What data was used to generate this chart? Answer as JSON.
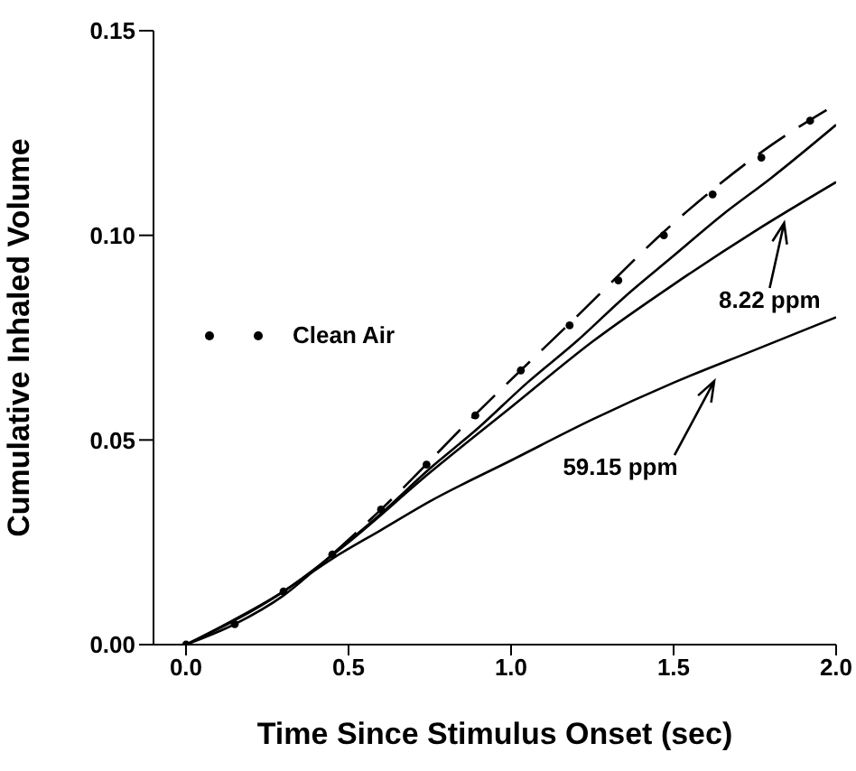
{
  "chart_data": {
    "type": "line",
    "xlabel": "Time Since Stimulus Onset (sec)",
    "ylabel": "Cumulative Inhaled Volume",
    "xlim": [
      -0.1,
      2.0
    ],
    "xticks": [
      {
        "value": 0,
        "label": "0.0"
      },
      {
        "value": 0.5,
        "label": "0.5"
      },
      {
        "value": 1,
        "label": "1.0"
      },
      {
        "value": 1.5,
        "label": "1.5"
      },
      {
        "value": 2,
        "label": "2.0"
      }
    ],
    "ylim": [
      0,
      0.15
    ],
    "yticks": [
      {
        "value": 0,
        "label": "0.00"
      },
      {
        "value": 0.05,
        "label": "0.05"
      },
      {
        "value": 0.1,
        "label": "0.10"
      },
      {
        "value": 0.15,
        "label": "0.15"
      }
    ],
    "grid": false,
    "legend": "left",
    "series": [
      {
        "name": "Clean Air",
        "type": "scatter",
        "marker": "circle",
        "color": "#000000",
        "x": [
          0,
          0.15,
          0.3,
          0.45,
          0.6,
          0.74,
          0.89,
          1.03,
          1.18,
          1.33,
          1.47,
          1.62,
          1.77,
          1.92
        ],
        "values": [
          0,
          0.005,
          0.013,
          0.022,
          0.033,
          0.044,
          0.056,
          0.067,
          0.078,
          0.089,
          0.1,
          0.11,
          0.119,
          0.128
        ]
      },
      {
        "line_style": "dashed",
        "color": "#000000",
        "x": [
          0.45,
          0.6,
          0.9,
          1.2,
          1.5,
          1.8,
          2.0
        ],
        "values": [
          0.022,
          0.033,
          0.057,
          0.08,
          0.103,
          0.122,
          0.132
        ]
      },
      {
        "line_style": "solid",
        "color": "#000000",
        "x": [
          0,
          0.15,
          0.3,
          0.45,
          0.6,
          0.75,
          0.9,
          1.05,
          1.2,
          1.35,
          1.5,
          1.65,
          1.8,
          2.0
        ],
        "values": [
          0,
          0.005,
          0.012,
          0.022,
          0.032,
          0.043,
          0.053,
          0.064,
          0.074,
          0.085,
          0.095,
          0.105,
          0.114,
          0.127
        ]
      },
      {
        "line_style": "solid",
        "color": "#000000",
        "x": [
          0,
          0.3,
          0.5,
          0.75,
          1.0,
          1.25,
          1.5,
          1.75,
          2.0
        ],
        "values": [
          0,
          0.013,
          0.025,
          0.042,
          0.058,
          0.074,
          0.088,
          0.101,
          0.113
        ]
      },
      {
        "line_style": "solid",
        "color": "#000000",
        "x": [
          0,
          0.3,
          0.45,
          0.6,
          0.75,
          1.0,
          1.25,
          1.5,
          1.75,
          2.0
        ],
        "values": [
          0,
          0.013,
          0.021,
          0.028,
          0.035,
          0.045,
          0.055,
          0.064,
          0.072,
          0.08
        ]
      }
    ],
    "annotations": [
      {
        "text": "8.22 ppm",
        "x": 1.84,
        "y": 0.105
      },
      "59.15 ppm"
    ]
  }
}
